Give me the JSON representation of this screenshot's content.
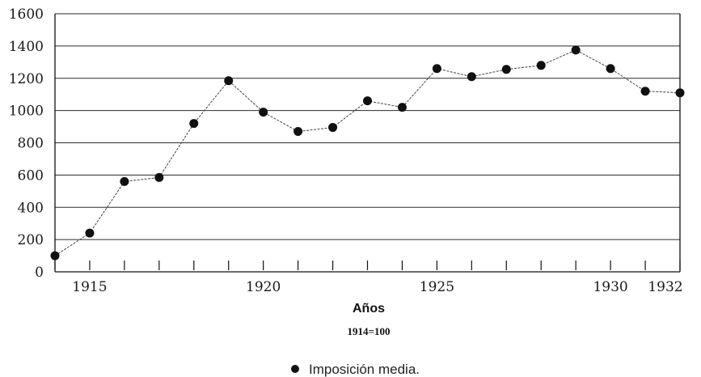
{
  "chart_data": {
    "type": "line",
    "x": [
      1914,
      1915,
      1916,
      1917,
      1918,
      1919,
      1920,
      1921,
      1922,
      1923,
      1924,
      1925,
      1926,
      1927,
      1928,
      1929,
      1930,
      1931,
      1932
    ],
    "series": [
      {
        "name": "Imposición media.",
        "values": [
          100,
          240,
          560,
          585,
          920,
          1185,
          990,
          870,
          895,
          1060,
          1020,
          1260,
          1210,
          1255,
          1280,
          1375,
          1260,
          1120,
          1110
        ],
        "color": "#111111",
        "marker": "circle"
      }
    ],
    "xlim": [
      1914,
      1932
    ],
    "ylim": [
      0,
      1600
    ],
    "yticks": [
      0,
      200,
      400,
      600,
      800,
      1000,
      1200,
      1400,
      1600
    ],
    "yticklabels": [
      "0",
      "200",
      "400",
      "600",
      "800",
      "1000",
      "1200",
      "1400",
      "1600"
    ],
    "xticks": [
      1915,
      1920,
      1925,
      1930,
      1932
    ],
    "xticklabels": [
      "1915",
      "1920",
      "1925",
      "1930",
      "1932"
    ],
    "xlabel": "Años",
    "ylabel": "",
    "subtitle": "1914=100",
    "grid": "horizontal",
    "legend_position": "bottom-center",
    "legend_label": "Imposición media."
  }
}
